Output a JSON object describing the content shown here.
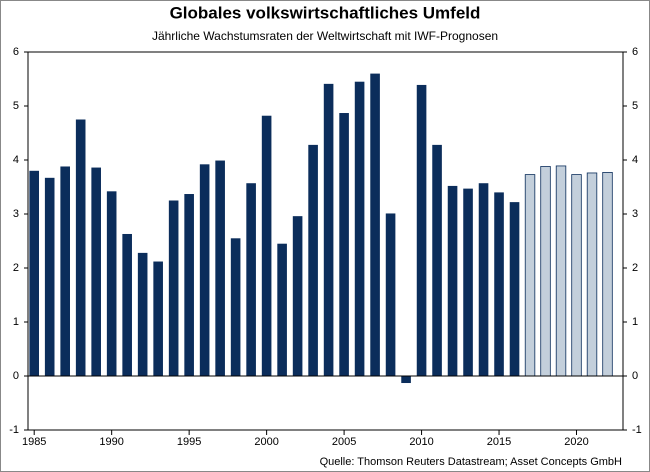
{
  "chart_data": {
    "type": "bar",
    "title": "Globales volkswirtschaftliches Umfeld",
    "subtitle": "Jährliche Wachstumsraten der Weltwirtschaft mit IWF-Prognosen",
    "source": "Quelle: Thomson Reuters Datastream; Asset Concepts GmbH",
    "x": [
      1985,
      1986,
      1987,
      1988,
      1989,
      1990,
      1991,
      1992,
      1993,
      1994,
      1995,
      1996,
      1997,
      1998,
      1999,
      2000,
      2001,
      2002,
      2003,
      2004,
      2005,
      2006,
      2007,
      2008,
      2009,
      2010,
      2011,
      2012,
      2013,
      2014,
      2015,
      2016,
      2017,
      2018,
      2019,
      2020,
      2021,
      2022
    ],
    "series": [
      {
        "color": "#0b2d5b",
        "values": [
          3.8,
          3.67,
          3.88,
          4.75,
          3.86,
          3.42,
          2.63,
          2.28,
          2.12,
          3.25,
          3.37,
          3.92,
          3.99,
          2.55,
          3.57,
          4.82,
          2.45,
          2.96,
          4.28,
          5.41,
          4.87,
          5.45,
          5.6,
          3.01,
          -0.13,
          5.39,
          4.28,
          3.52,
          3.47,
          3.57,
          3.4,
          3.22,
          null,
          null,
          null,
          null,
          null,
          null
        ]
      },
      {
        "color": "#c3cfdb",
        "values": [
          null,
          null,
          null,
          null,
          null,
          null,
          null,
          null,
          null,
          null,
          null,
          null,
          null,
          null,
          null,
          null,
          null,
          null,
          null,
          null,
          null,
          null,
          null,
          null,
          null,
          null,
          null,
          null,
          null,
          null,
          null,
          null,
          3.73,
          3.88,
          3.89,
          3.73,
          3.76,
          3.77
        ]
      }
    ],
    "xlim": [
      1984.6,
      2023.0
    ],
    "xticks": [
      1985,
      1990,
      1995,
      2000,
      2005,
      2010,
      2015,
      2020
    ],
    "ylim": [
      -1,
      6
    ],
    "yticks": [
      -1,
      0,
      1,
      2,
      3,
      4,
      5,
      6
    ],
    "y2lim": [
      -1,
      6
    ],
    "y2ticks": [
      -1,
      0,
      1,
      2,
      3,
      4,
      5,
      6
    ]
  }
}
